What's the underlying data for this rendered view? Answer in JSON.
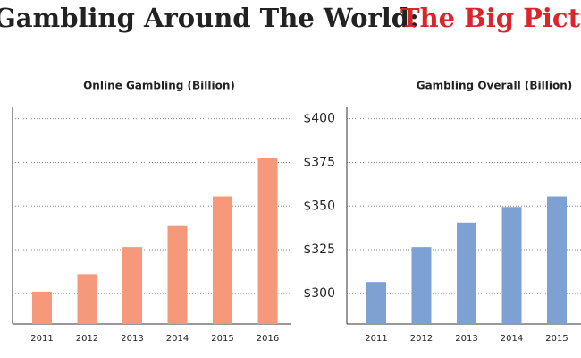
{
  "title": "Gambling Around The World:",
  "title_highlight": "The Big Pictu",
  "chart_data": [
    {
      "type": "bar",
      "title": "Online Gambling (Billion)",
      "categories": [
        "2011",
        "2012",
        "2013",
        "2014",
        "2015",
        "2016"
      ],
      "values": [
        301,
        311,
        326.5,
        339,
        355.5,
        377.5
      ],
      "color": "#f5997a",
      "ylim": [
        282.5,
        406.5
      ],
      "yticks": [
        300,
        325,
        350,
        375,
        400
      ],
      "grid": true
    },
    {
      "type": "bar",
      "title": "Gambling Overall (Billion)",
      "categories": [
        "2011",
        "2012",
        "2013",
        "2014",
        "2015"
      ],
      "values": [
        306.5,
        326.5,
        340.5,
        349.5,
        355.5
      ],
      "color": "#7ea1d4",
      "ylim": [
        282.5,
        406.5
      ],
      "yticks": [
        {
          "value": 300,
          "label": "$300"
        },
        {
          "value": 325,
          "label": "$325"
        },
        {
          "value": 350,
          "label": "$350"
        },
        {
          "value": 375,
          "label": "$375"
        },
        {
          "value": 400,
          "label": "$400"
        }
      ],
      "grid": true
    }
  ]
}
